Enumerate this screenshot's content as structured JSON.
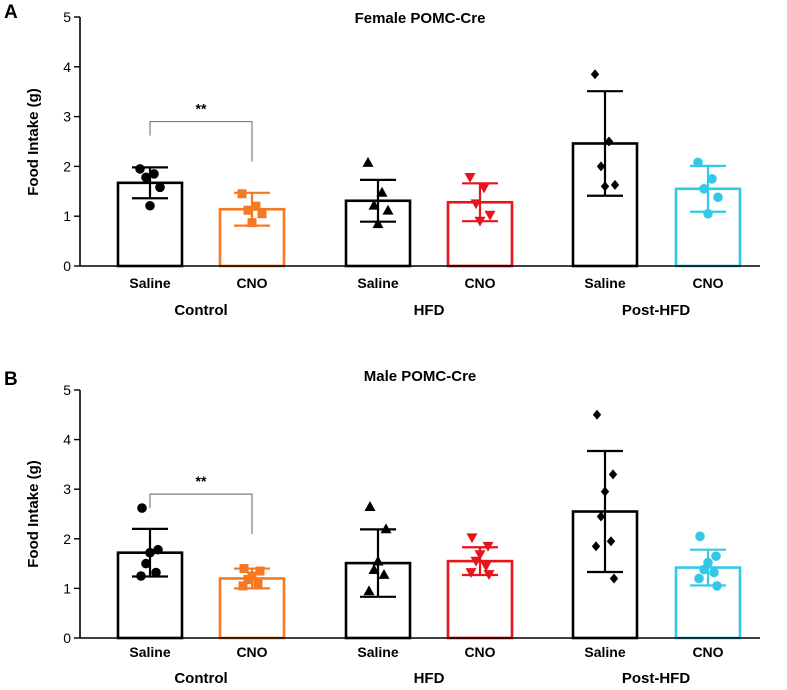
{
  "chart_data": [
    {
      "panel": "A",
      "type": "bar",
      "title": "Female POMC-Cre",
      "ylabel": "Food Intake (g)",
      "ylim": [
        0,
        5
      ],
      "yticks": [
        "0",
        "1",
        "2",
        "3",
        "4",
        "5"
      ],
      "categories": [
        "Saline",
        "CNO",
        "Saline",
        "CNO",
        "Saline",
        "CNO"
      ],
      "groups": [
        "Control",
        "HFD",
        "Post-HFD"
      ],
      "colors": [
        "#000000",
        "#f47920",
        "#000000",
        "#e8141b",
        "#000000",
        "#33c8e6"
      ],
      "markers": [
        "circle",
        "square",
        "triangle-up",
        "triangle-down",
        "diamond",
        "circle"
      ],
      "means": [
        1.67,
        1.14,
        1.31,
        1.28,
        2.46,
        1.55
      ],
      "sd": [
        0.31,
        0.33,
        0.42,
        0.38,
        1.05,
        0.46
      ],
      "points": [
        [
          1.95,
          1.85,
          1.78,
          1.58,
          1.21
        ],
        [
          1.45,
          1.2,
          1.12,
          1.05,
          0.87
        ],
        [
          2.08,
          1.48,
          1.22,
          1.12,
          0.85
        ],
        [
          1.78,
          1.57,
          1.25,
          1.02,
          0.9
        ],
        [
          3.85,
          2.5,
          2.0,
          1.63,
          1.6
        ],
        [
          2.08,
          1.75,
          1.55,
          1.38,
          1.05
        ]
      ],
      "significance": [
        {
          "from": 0,
          "to": 1,
          "label": "**",
          "y": 2.9
        }
      ]
    },
    {
      "panel": "B",
      "type": "bar",
      "title": "Male POMC-Cre",
      "ylabel": "Food Intake (g)",
      "ylim": [
        0,
        5
      ],
      "yticks": [
        "0",
        "1",
        "2",
        "3",
        "4",
        "5"
      ],
      "categories": [
        "Saline",
        "CNO",
        "Saline",
        "CNO",
        "Saline",
        "CNO"
      ],
      "groups": [
        "Control",
        "HFD",
        "Post-HFD"
      ],
      "colors": [
        "#000000",
        "#f47920",
        "#000000",
        "#e8141b",
        "#000000",
        "#33c8e6"
      ],
      "markers": [
        "circle",
        "square",
        "triangle-up",
        "triangle-down",
        "diamond",
        "circle"
      ],
      "means": [
        1.72,
        1.2,
        1.51,
        1.55,
        2.55,
        1.42
      ],
      "sd": [
        0.48,
        0.2,
        0.68,
        0.28,
        1.22,
        0.36
      ],
      "points": [
        [
          2.62,
          1.78,
          1.72,
          1.5,
          1.32,
          1.25
        ],
        [
          1.4,
          1.35,
          1.25,
          1.18,
          1.1,
          1.05
        ],
        [
          2.65,
          2.2,
          1.55,
          1.38,
          1.28,
          0.95
        ],
        [
          2.02,
          1.85,
          1.68,
          1.55,
          1.45,
          1.32,
          1.28
        ],
        [
          4.5,
          3.3,
          2.95,
          2.45,
          1.95,
          1.85,
          1.2
        ],
        [
          2.05,
          1.65,
          1.52,
          1.38,
          1.32,
          1.2,
          1.05
        ]
      ],
      "significance": [
        {
          "from": 0,
          "to": 1,
          "label": "**",
          "y": 2.9
        }
      ]
    }
  ]
}
